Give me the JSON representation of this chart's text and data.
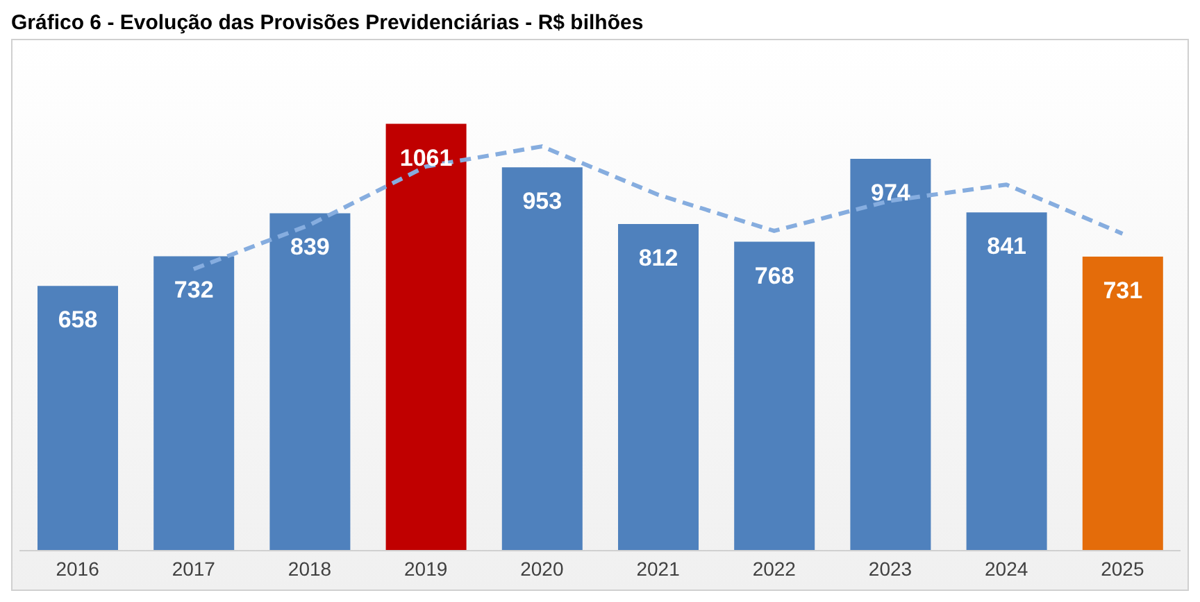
{
  "chart_data": {
    "type": "bar",
    "title": "Gráfico 6 - Evolução das Provisões Previdenciárias - R$ bilhões",
    "categories": [
      "2016",
      "2017",
      "2018",
      "2019",
      "2020",
      "2021",
      "2022",
      "2023",
      "2024",
      "2025"
    ],
    "series": [
      {
        "color": "#4f81bd",
        "colors": [
          "#4f81bd",
          "#4f81bd",
          "#4f81bd",
          "#c00000",
          "#4f81bd",
          "#4f81bd",
          "#4f81bd",
          "#4f81bd",
          "#4f81bd",
          "#e46c0a"
        ],
        "values": [
          658,
          732,
          839,
          1061,
          953,
          812,
          768,
          974,
          841,
          731
        ],
        "value_labels": [
          "658",
          "732",
          "839",
          "1061",
          "953",
          "812",
          "768",
          "974",
          "841",
          "731"
        ]
      },
      {
        "type": "line",
        "color": "#86addf",
        "line_style": "dashed",
        "marker": "none",
        "values": [
          null,
          700,
          810,
          955,
          1005,
          885,
          795,
          870,
          910,
          788
        ]
      }
    ],
    "tick_labels": "x"
  }
}
